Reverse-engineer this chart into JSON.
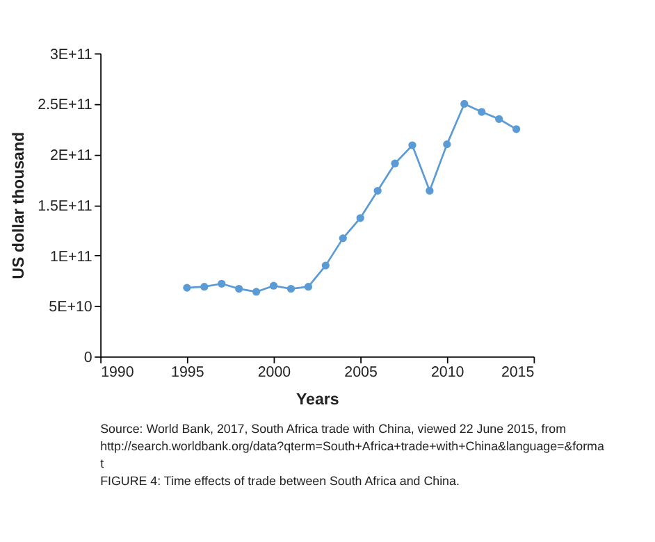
{
  "chart_data": {
    "type": "line",
    "xlabel": "Years",
    "ylabel": "US dollar thousand",
    "x": [
      1995,
      1996,
      1997,
      1998,
      1999,
      2000,
      2001,
      2002,
      2003,
      2004,
      2005,
      2006,
      2007,
      2008,
      2009,
      2010,
      2011,
      2012,
      2013,
      2014
    ],
    "series": [
      {
        "color": "#5b9bd5",
        "values": [
          68000000000.0,
          69000000000.0,
          72000000000.0,
          67000000000.0,
          64000000000.0,
          70000000000.0,
          67000000000.0,
          69000000000.0,
          90000000000.0,
          117000000000.0,
          137000000000.0,
          164000000000.0,
          191000000000.0,
          209000000000.0,
          164000000000.0,
          210000000000.0,
          250000000000.0,
          242000000000.0,
          235000000000.0,
          225000000000.0
        ]
      }
    ],
    "xlim": [
      1990,
      2015
    ],
    "xticks": [
      1990,
      1995,
      2000,
      2005,
      2010,
      2015
    ],
    "ylim": [
      0,
      300000000000.0
    ],
    "yticks": [
      0,
      {
        "value": 50000000000.0,
        "label": "5E+10"
      },
      {
        "value": 100000000000.0,
        "label": "1E+11"
      },
      {
        "value": 150000000000.0,
        "label": "1.5E+11"
      },
      {
        "value": 200000000000.0,
        "label": "2E+11"
      },
      {
        "value": 250000000000.0,
        "label": "2.5E+11"
      },
      {
        "value": 300000000000.0,
        "label": "3E+11"
      }
    ],
    "marker": "circle",
    "grid": false,
    "line_style": "solid",
    "annotations": [
      "Source: World Bank, 2017, South Africa trade with China, viewed 22 June 2015, from http://search.worldbank.org/data?qterm=South+Africa+trade+with+China&language=&format",
      "FIGURE 4: Time effects of trade between South Africa and China."
    ]
  }
}
